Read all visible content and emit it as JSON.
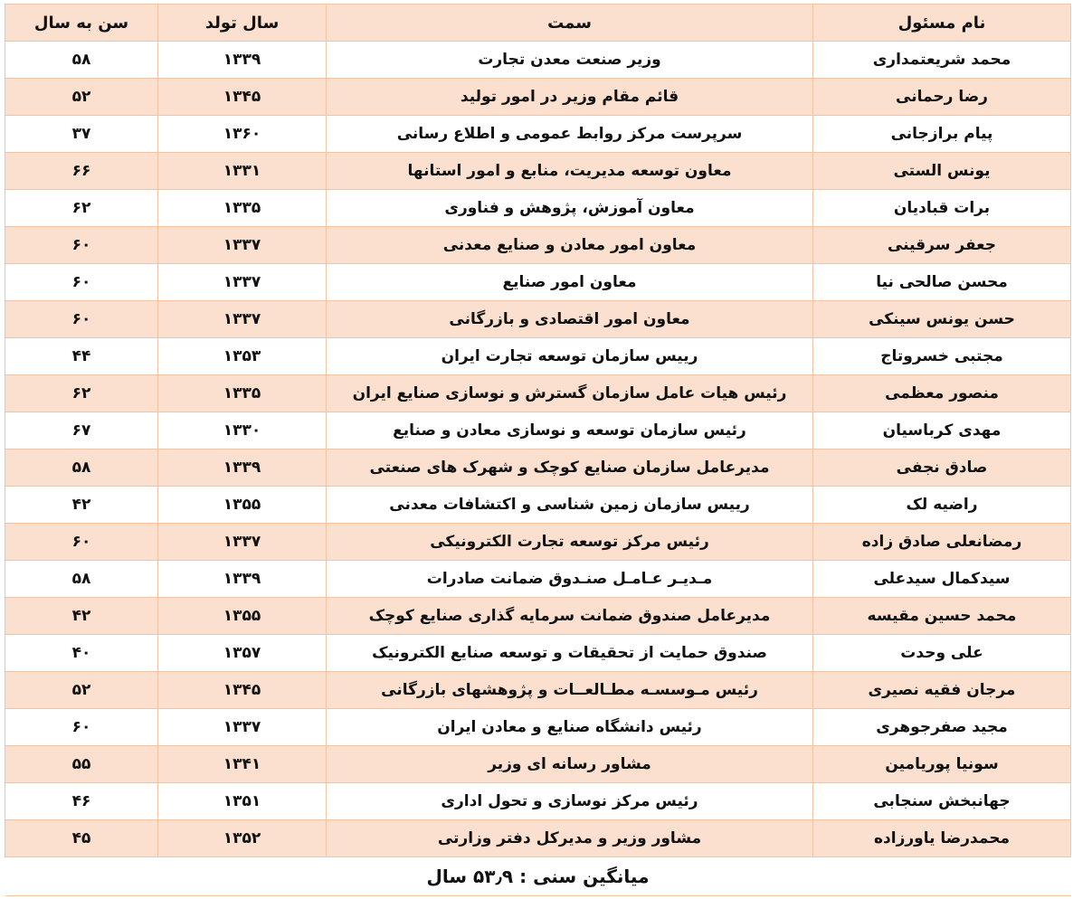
{
  "table": {
    "headers": {
      "name": "نام مسئول",
      "position": "سمت",
      "birth_year": "سال تولد",
      "age": "سن به سال"
    },
    "row_colors": {
      "striped": "#fbe0d0",
      "plain": "#ffffff",
      "border": "#f2c4a6"
    },
    "rows": [
      {
        "name": "محمد شریعتمداری",
        "position": "وزیر صنعت معدن تجارت",
        "birth_year": "۱۳۳۹",
        "age": "۵۸"
      },
      {
        "name": "رضا رحمانی",
        "position": "قائم مقام وزیر در امور تولید",
        "birth_year": "۱۳۴۵",
        "age": "۵۲"
      },
      {
        "name": "پیام برازجانی",
        "position": "سرپرست مرکز روابط عمومی و اطلاع رسانی",
        "birth_year": "۱۳۶۰",
        "age": "۳۷"
      },
      {
        "name": "یونس الستی",
        "position": "معاون توسعه مدیریت، منابع و امور استانها",
        "birth_year": "۱۳۳۱",
        "age": "۶۶"
      },
      {
        "name": "برات قبادیان",
        "position": "معاون آموزش، پژوهش و فناوری",
        "birth_year": "۱۳۳۵",
        "age": "۶۲"
      },
      {
        "name": "جعفر سرقینی",
        "position": "معاون امور معادن و صنایع معدنی",
        "birth_year": "۱۳۳۷",
        "age": "۶۰"
      },
      {
        "name": "محسن صالحی نیا",
        "position": "معاون امور صنایع",
        "birth_year": "۱۳۳۷",
        "age": "۶۰"
      },
      {
        "name": "حسن یونس سینکی",
        "position": "معاون امور اقتصادی و بازرگانی",
        "birth_year": "۱۳۳۷",
        "age": "۶۰"
      },
      {
        "name": "مجتبی خسروتاج",
        "position": "رییس سازمان توسعه تجارت ایران",
        "birth_year": "۱۳۵۳",
        "age": "۴۴"
      },
      {
        "name": "منصور معظمی",
        "position": "رئیس هیات عامل سازمان گسترش و نوسازی صنایع ایران",
        "birth_year": "۱۳۳۵",
        "age": "۶۲"
      },
      {
        "name": "مهدی کرباسیان",
        "position": "رئیس سازمان توسعه و نوسازی معادن و صنایع",
        "birth_year": "۱۳۳۰",
        "age": "۶۷"
      },
      {
        "name": "صادق نجفی",
        "position": "مدیرعامل سازمان صنایع کوچک و شهرک های صنعتی",
        "birth_year": "۱۳۳۹",
        "age": "۵۸"
      },
      {
        "name": "راضیه لک",
        "position": "رییس سازمان زمین شناسی و اکتشافات معدنی",
        "birth_year": "۱۳۵۵",
        "age": "۴۲"
      },
      {
        "name": "رمضانعلی صادق زاده",
        "position": "رئیس مرکز توسعه تجارت الکترونیکی",
        "birth_year": "۱۳۳۷",
        "age": "۶۰"
      },
      {
        "name": "سیدکمال سیدعلی",
        "position": "مـدیـر عـامـل صنـدوق ضمانت صادرات",
        "birth_year": "۱۳۳۹",
        "age": "۵۸"
      },
      {
        "name": "محمد حسین مقیسه",
        "position": "مدیرعامل صندوق ضمانت سرمایه گذاری صنایع کوچک",
        "birth_year": "۱۳۵۵",
        "age": "۴۲"
      },
      {
        "name": "علی وحدت",
        "position": "صندوق حمایت از تحقیقات و توسعه صنایع الکترونیک",
        "birth_year": "۱۳۵۷",
        "age": "۴۰"
      },
      {
        "name": "مرجان فقیه نصیری",
        "position": "رئیس مـوسسـه مطـالعــات و پژوهشهای بازرگانی",
        "birth_year": "۱۳۴۵",
        "age": "۵۲"
      },
      {
        "name": "مجید صفرجوهری",
        "position": "رئیس دانشگاه صنایع و معادن ایران",
        "birth_year": "۱۳۳۷",
        "age": "۶۰"
      },
      {
        "name": "سونیا پوریامین",
        "position": "مشاور رسانه ای وزیر",
        "birth_year": "۱۳۴۱",
        "age": "۵۵"
      },
      {
        "name": "جهانبخش سنجابی",
        "position": "رئیس مرکز نوسازی و تحول اداری",
        "birth_year": "۱۳۵۱",
        "age": "۴۶"
      },
      {
        "name": "محمدرضا یاورزاده",
        "position": "مشاور وزیر و مدیرکل دفتر وزارتی",
        "birth_year": "۱۳۵۲",
        "age": "۴۵"
      }
    ],
    "footer": "میانگین سنی : ۵۳٫۹ سال"
  }
}
